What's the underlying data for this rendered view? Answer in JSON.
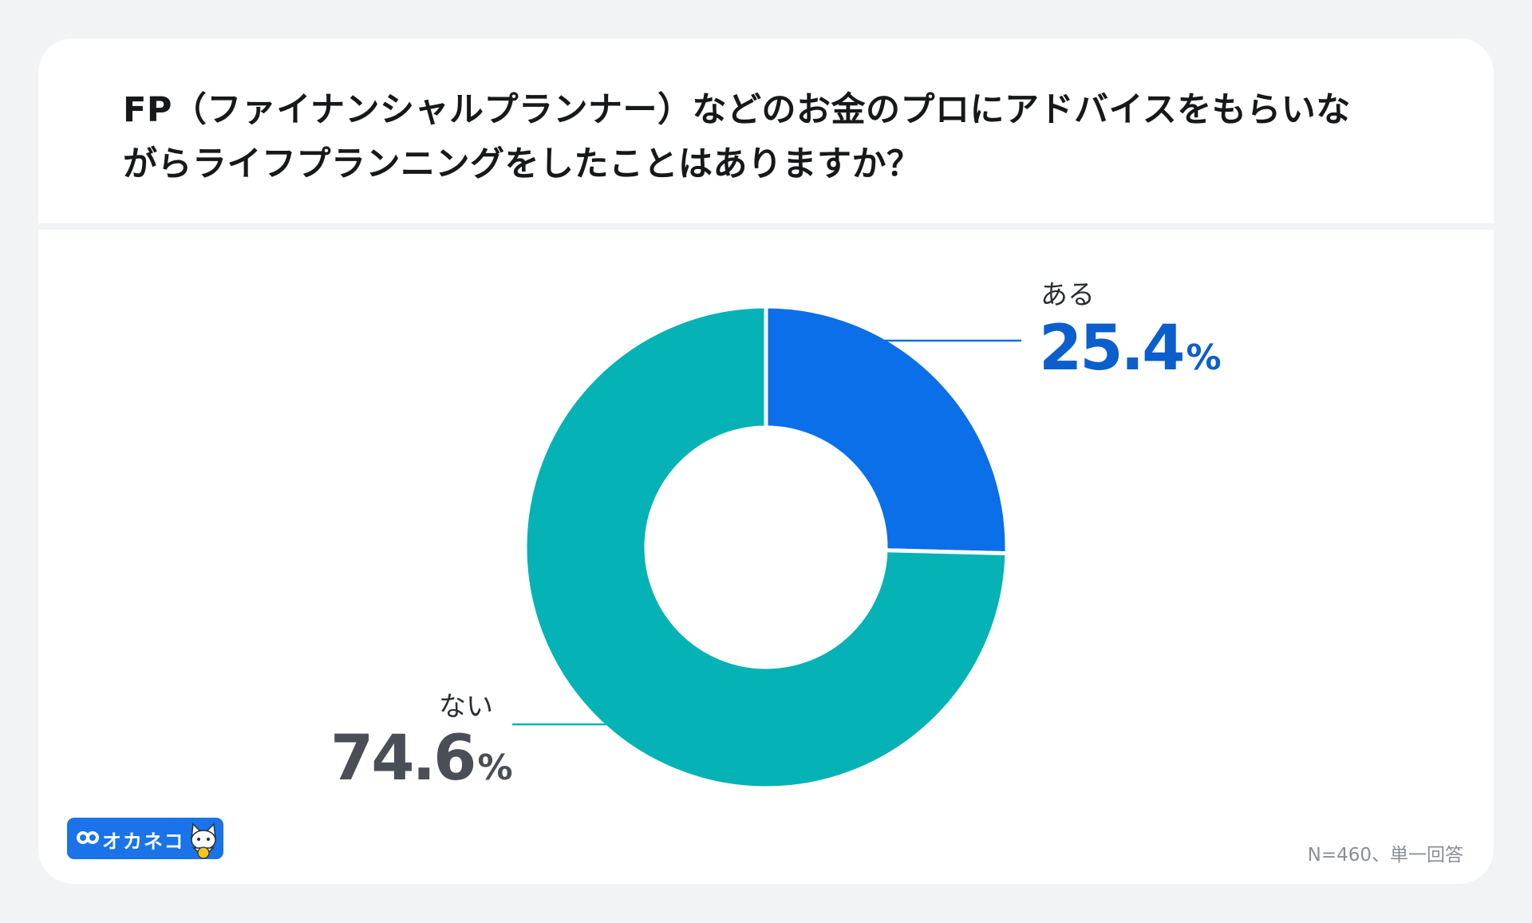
{
  "chart_data": {
    "type": "pie",
    "variant": "donut",
    "title_lines": [
      "FP（ファイナンシャルプランナー）などのお金のプロにアドバイスをもらいな",
      "がらライフプランニングをしたことはありますか？"
    ],
    "categories": [
      "ある",
      "ない"
    ],
    "values": [
      25.4,
      74.6
    ],
    "value_labels": [
      "25.4",
      "74.6"
    ],
    "unit": "%",
    "colors": [
      "#0a6fe8",
      "#05b2b5"
    ],
    "label_colors": [
      "#0a5fcc",
      "#4a4f57"
    ],
    "legend": "none"
  },
  "footnote": "N=460、単一回答",
  "logo": {
    "text": "オカネコ",
    "icon": "infinity-icon",
    "mascot": "cat-mascot-icon",
    "color": "#1a73e8"
  }
}
